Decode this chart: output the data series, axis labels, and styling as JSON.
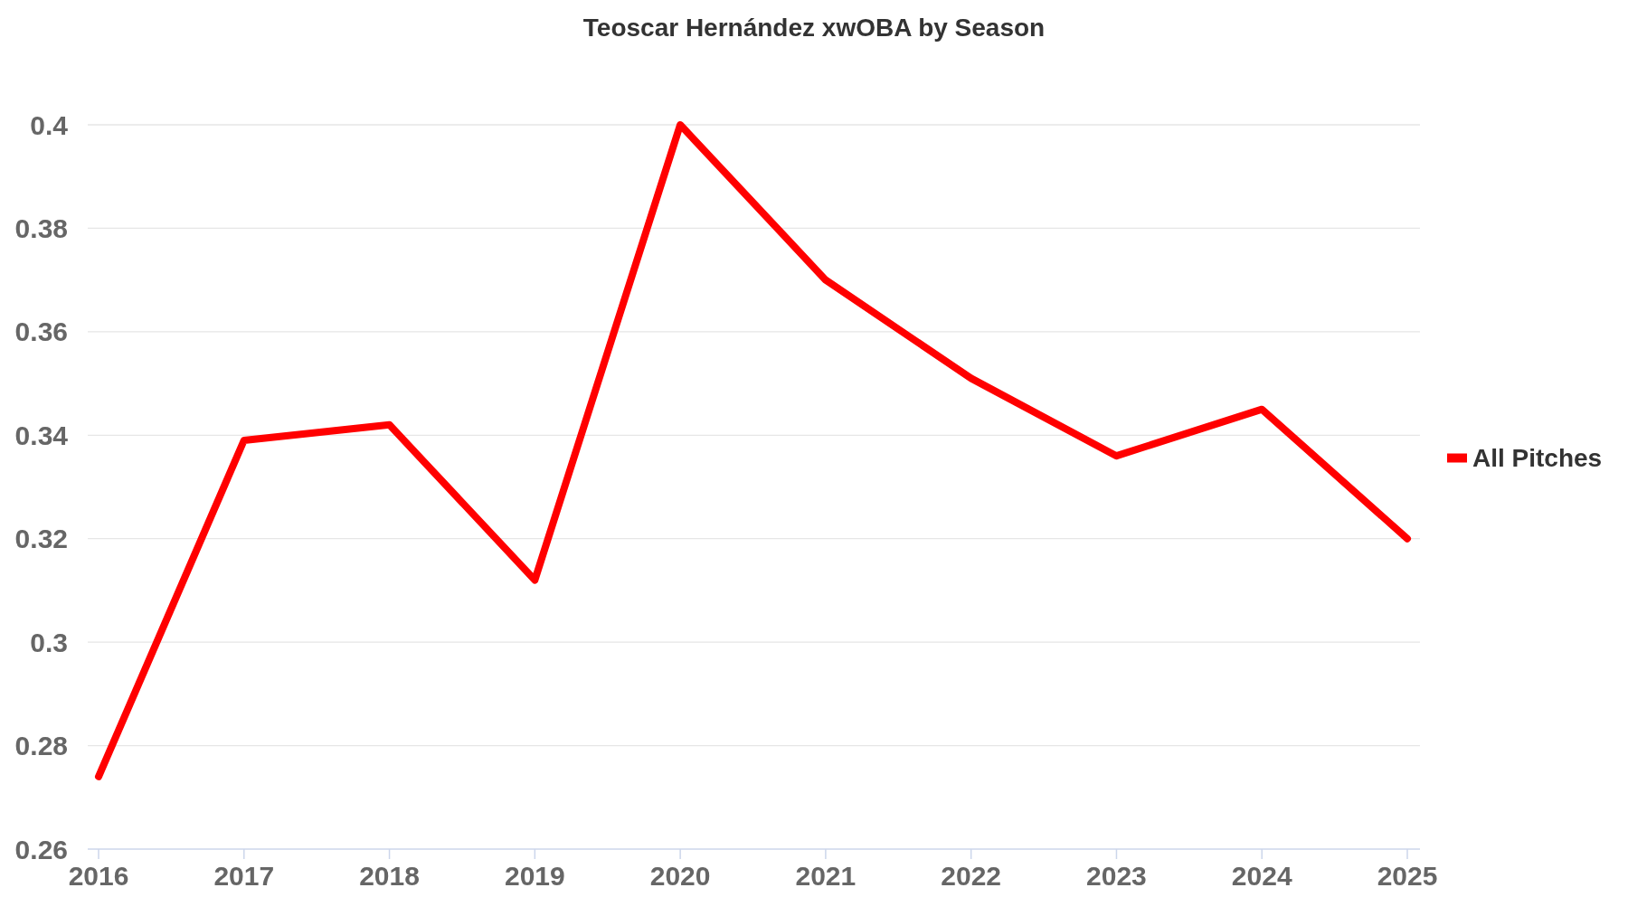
{
  "chart_data": {
    "type": "line",
    "title": "Teoscar Hernández xwOBA by Season",
    "categories": [
      "2016",
      "2017",
      "2018",
      "2019",
      "2020",
      "2021",
      "2022",
      "2023",
      "2024",
      "2025"
    ],
    "series": [
      {
        "name": "All Pitches",
        "color": "#ff0000",
        "values": [
          0.274,
          0.339,
          0.342,
          0.312,
          0.4,
          0.37,
          0.351,
          0.336,
          0.345,
          0.32
        ]
      }
    ],
    "ylim": [
      0.26,
      0.4
    ],
    "yticks": [
      0.26,
      0.28,
      0.3,
      0.32,
      0.34,
      0.36,
      0.38,
      0.4
    ],
    "grid": "y",
    "legend": "right",
    "line_style": "solid"
  }
}
